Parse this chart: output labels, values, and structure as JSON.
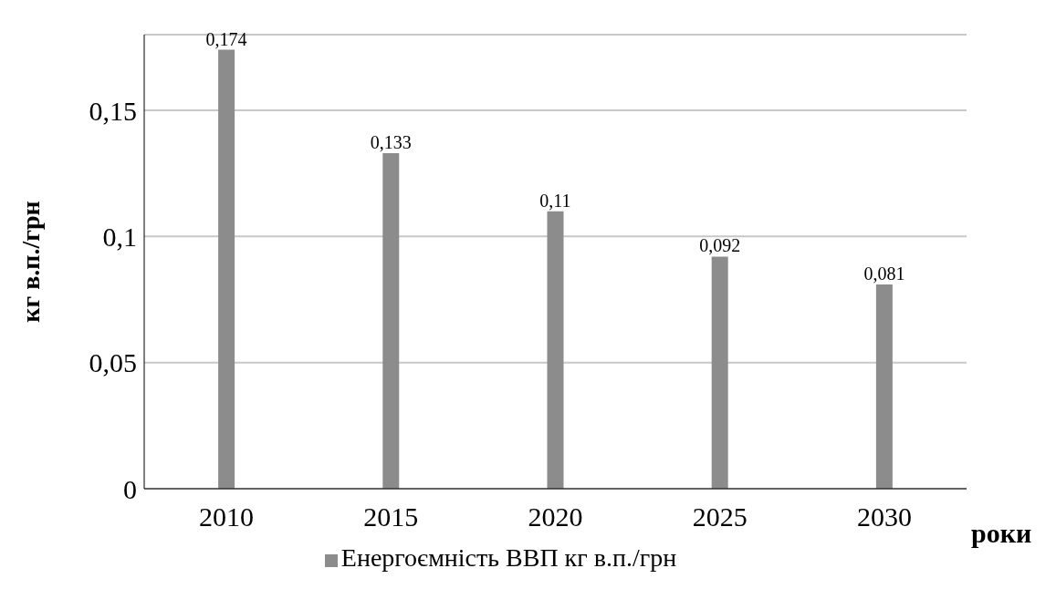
{
  "chart_data": {
    "type": "bar",
    "xlabel": "роки",
    "ylabel": "кг в.п./грн",
    "categories": [
      "2010",
      "2015",
      "2020",
      "2025",
      "2030"
    ],
    "series": [
      {
        "name": "Енергоємність ВВП кг в.п./грн",
        "color": "#8c8c8c",
        "values": [
          0.174,
          0.133,
          0.11,
          0.092,
          0.081
        ],
        "value_labels": [
          "0,174",
          "0,133",
          "0,11",
          "0,092",
          "0,081"
        ]
      }
    ],
    "ylim": [
      0,
      0.18
    ],
    "yticks": [
      0,
      {
        "value": 0.05,
        "label": "0,05"
      },
      {
        "value": 0.1,
        "label": "0,1"
      },
      {
        "value": 0.15,
        "label": "0,15"
      }
    ],
    "grid": "y",
    "legend": "bottom"
  }
}
